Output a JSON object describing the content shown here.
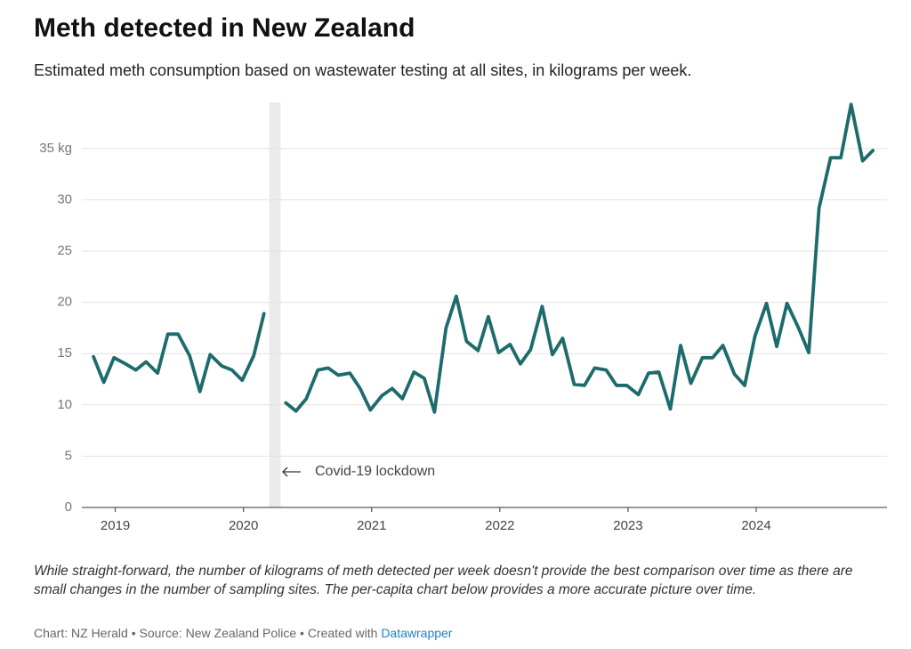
{
  "chart_data": {
    "type": "line",
    "title": "Meth detected in New Zealand",
    "subtitle": "Estimated meth consumption based on wastewater testing at all sites, in kilograms per week.",
    "x": [
      2018.83,
      2018.91,
      2018.99,
      2019.08,
      2019.16,
      2019.24,
      2019.33,
      2019.41,
      2019.49,
      2019.58,
      2019.66,
      2019.74,
      2019.83,
      2019.91,
      2019.99,
      2020.08,
      2020.16,
      2020.24,
      2020.33,
      2020.41,
      2020.49,
      2020.58,
      2020.66,
      2020.74,
      2020.83,
      2020.91,
      2020.99,
      2021.08,
      2021.16,
      2021.24,
      2021.33,
      2021.41,
      2021.49,
      2021.58,
      2021.66,
      2021.74,
      2021.83,
      2021.91,
      2021.99,
      2022.08,
      2022.16,
      2022.24,
      2022.33,
      2022.41,
      2022.49,
      2022.58,
      2022.66,
      2022.74,
      2022.83,
      2022.91,
      2022.99,
      2023.08,
      2023.16,
      2023.24,
      2023.33,
      2023.41,
      2023.49,
      2023.58,
      2023.66,
      2023.74,
      2023.83,
      2023.91,
      2023.99,
      2024.08,
      2024.16,
      2024.24,
      2024.33,
      2024.41,
      2024.49,
      2024.58,
      2024.66,
      2024.74,
      2024.83,
      2024.91
    ],
    "values": [
      14.7,
      12.2,
      14.6,
      14.0,
      13.4,
      14.2,
      13.1,
      16.9,
      16.9,
      14.8,
      11.3,
      14.9,
      13.8,
      13.4,
      12.4,
      14.8,
      18.9,
      null,
      10.2,
      9.4,
      10.6,
      13.4,
      13.6,
      12.9,
      13.1,
      11.6,
      9.5,
      10.9,
      11.6,
      10.6,
      13.2,
      12.6,
      9.3,
      17.5,
      20.6,
      16.2,
      15.3,
      18.6,
      15.1,
      15.9,
      14.0,
      15.4,
      19.6,
      14.9,
      16.5,
      12.0,
      11.9,
      13.6,
      13.4,
      11.9,
      11.9,
      11.0,
      13.1,
      13.2,
      9.6,
      15.8,
      12.1,
      14.6,
      14.6,
      15.8,
      13.0,
      11.9,
      16.7,
      19.9,
      15.7,
      19.9,
      17.5,
      15.1,
      29.2,
      34.1,
      34.1,
      39.3,
      33.8,
      34.8
    ],
    "color": "#1d6b6b",
    "xlim": [
      2018.76,
      2025.02
    ],
    "xticks": [
      2019,
      2020,
      2021,
      2022,
      2023,
      2024
    ],
    "ylim": [
      0,
      39.5
    ],
    "yticks": [
      0,
      5,
      10,
      15,
      20,
      25,
      30,
      {
        "value": 35,
        "label": "35 kg"
      }
    ],
    "grid": true,
    "annotations": [
      {
        "text": "Covid-19 lockdown",
        "x": [
          2020.2,
          2020.29
        ]
      }
    ]
  },
  "notes": "While straight-forward, the number of kilograms of meth detected per week doesn't provide the best comparison over time as there are small changes in the number of sampling sites. The per-capita chart below provides a more accurate picture over time.",
  "credit": "Chart: NZ Herald • Source: New Zealand Police • Created with",
  "credit_link": "Datawrapper"
}
